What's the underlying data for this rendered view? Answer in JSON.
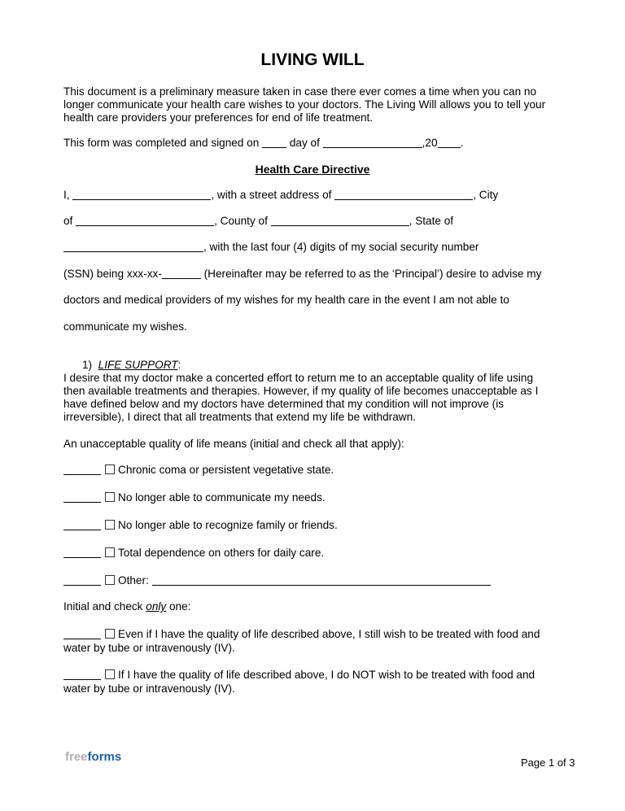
{
  "title": "LIVING WILL",
  "intro": [
    "This document is a preliminary measure taken in case there ever comes a time when you can no",
    "longer communicate your health care wishes to your doctors. The Living Will allows you to tell your",
    "health care providers your preferences for end of life treatment."
  ],
  "signed": {
    "a": "This form was completed and signed on",
    "b": "day of",
    "c": ",20",
    "d": "."
  },
  "heading": "Health Care Directive",
  "directive": {
    "l1a": "I,",
    "l1b": ", with a street address of",
    "l1c": ", City",
    "l2a": "of",
    "l2b": ", County of",
    "l2c": ", State of",
    "l3": ", with the last four (4) digits of my social security number",
    "l4a": "(SSN) being xxx-xx-",
    "l4b": " (Hereinafter may be referred to as the ‘Principal’) desire to advise my",
    "l5": "doctors and medical providers of my wishes for my health care in the event I am not able to",
    "l6": "communicate my wishes."
  },
  "section1": {
    "num": "1)",
    "title": "LIFE SUPPORT",
    "colon": ":",
    "para": [
      "I desire that my doctor make a concerted effort to return me to an acceptable quality of life using",
      "then available treatments and therapies. However, if my quality of life becomes unacceptable as I",
      "have defined below and my doctors have determined that my condition will not improve (is",
      "irreversible), I direct that all treatments that extend my life be withdrawn."
    ],
    "unacceptable": "An unacceptable quality of life means (initial and check all that apply):",
    "items": [
      "Chronic coma or persistent vegetative state.",
      "No longer able to communicate my needs.",
      "No longer able to recognize family or friends.",
      "Total dependence on others for daily care.",
      "Other:"
    ],
    "only_a": "Initial and check ",
    "only_b": "only",
    "only_c": " one:",
    "opt1": [
      "Even if I have the quality of life described above, I still wish to be treated with food and",
      "water by tube or intravenously (IV)."
    ],
    "opt2": [
      "If I have the quality of life described above, I do NOT wish to be treated with food and",
      "water by tube or intravenously (IV)."
    ]
  },
  "footer": {
    "logo_a": "free",
    "logo_b": "forms",
    "page": "Page 1 of 3"
  },
  "colors": {
    "field": "#d6dcff",
    "logo_grey": "#b0b0b0",
    "logo_blue": "#1f5fa8"
  }
}
